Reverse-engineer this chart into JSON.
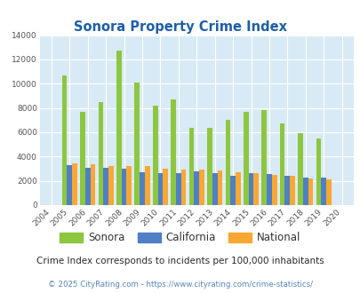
{
  "title": "Sonora Property Crime Index",
  "years": [
    2004,
    2005,
    2006,
    2007,
    2008,
    2009,
    2010,
    2011,
    2012,
    2013,
    2014,
    2015,
    2016,
    2017,
    2018,
    2019,
    2020
  ],
  "sonora": [
    0,
    10700,
    7700,
    8500,
    12700,
    10100,
    8200,
    8700,
    6400,
    6400,
    7000,
    7700,
    7800,
    6700,
    5900,
    5500,
    0
  ],
  "california": [
    0,
    3300,
    3100,
    3050,
    3000,
    2700,
    2600,
    2650,
    2750,
    2600,
    2400,
    2600,
    2550,
    2450,
    2250,
    2300,
    0
  ],
  "national": [
    0,
    3450,
    3350,
    3250,
    3250,
    3200,
    3000,
    2950,
    2950,
    2850,
    2700,
    2600,
    2500,
    2450,
    2200,
    2100,
    0
  ],
  "sonora_color": "#8dc63f",
  "california_color": "#4f7fc5",
  "national_color": "#f8a832",
  "plot_bg_color": "#d8eaf5",
  "ylim": [
    0,
    14000
  ],
  "yticks": [
    0,
    2000,
    4000,
    6000,
    8000,
    10000,
    12000,
    14000
  ],
  "subtitle": "Crime Index corresponds to incidents per 100,000 inhabitants",
  "footer": "© 2025 CityRating.com - https://www.cityrating.com/crime-statistics/",
  "title_color": "#1e5fa8",
  "subtitle_color": "#2a2a2a",
  "footer_color": "#5588bb",
  "legend_label_color": "#333333"
}
